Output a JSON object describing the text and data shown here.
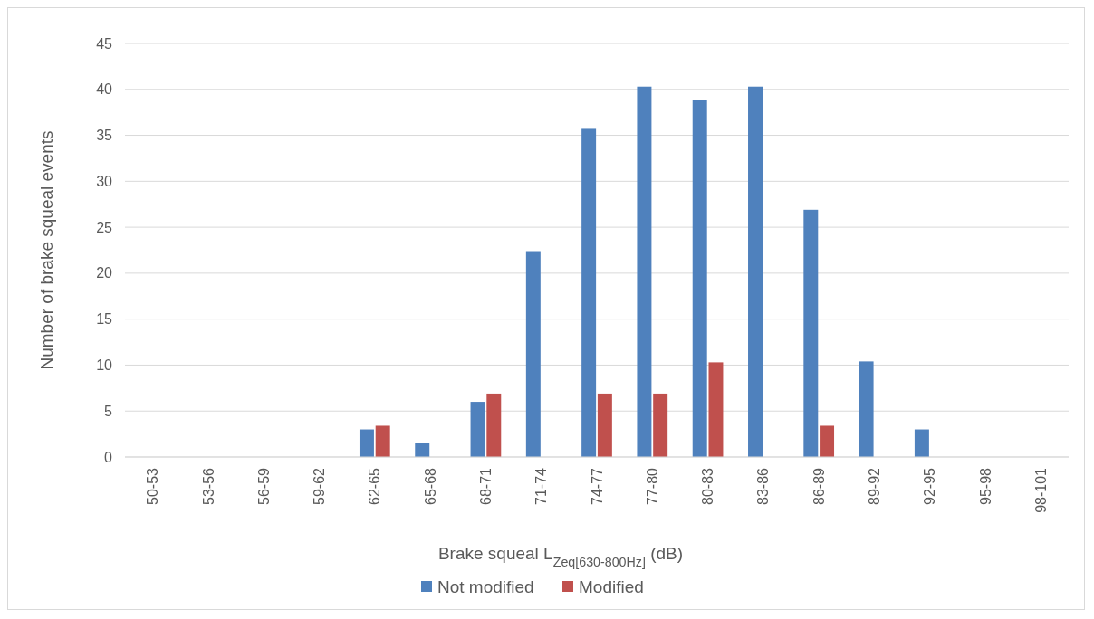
{
  "chart_data": {
    "type": "bar",
    "xlabel": "Brake squeal L$_{Zeq[630-800Hz]}$ (dB)",
    "ylabel": "Number of brake squeal events",
    "categories": [
      "50-53",
      "53-56",
      "56-59",
      "59-62",
      "62-65",
      "65-68",
      "68-71",
      "71-74",
      "74-77",
      "77-80",
      "80-83",
      "83-86",
      "86-89",
      "89-92",
      "92-95",
      "95-98",
      "98-101"
    ],
    "series": [
      {
        "name": "Not modified",
        "color": "#4f81bd",
        "values": [
          0,
          0,
          0,
          0,
          3,
          1.5,
          6,
          22.4,
          35.8,
          40.3,
          38.8,
          40.3,
          26.9,
          10.4,
          3,
          0,
          0
        ]
      },
      {
        "name": "Modified",
        "color": "#c0504d",
        "values": [
          0,
          0,
          0,
          0,
          3.4,
          0,
          6.9,
          0,
          6.9,
          6.9,
          10.3,
          0,
          3.4,
          0,
          0,
          0,
          0
        ]
      }
    ],
    "ylim": [
      0,
      45
    ],
    "yticks": [
      0,
      5,
      10,
      15,
      20,
      25,
      30,
      35,
      40,
      45
    ],
    "grid": "y",
    "legend": "bottom"
  }
}
